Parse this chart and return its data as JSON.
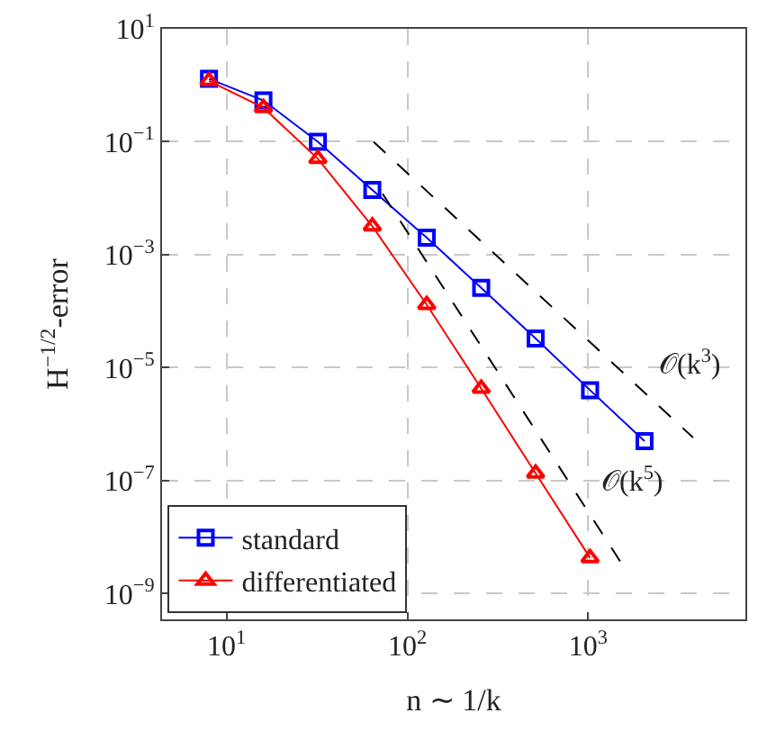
{
  "chart_data": {
    "type": "line",
    "xlabel": "n ∼ 1/k",
    "ylabel": "H$^{−1/2}$-error",
    "log": "xy",
    "grid": true,
    "legend": "bottom left",
    "xlim": [
      4.4,
      7400
    ],
    "ylim": [
      3.5e-10,
      10
    ],
    "xticks": [
      {
        "value": 10,
        "label": "10$^{1}$"
      },
      {
        "value": 100,
        "label": "10$^{2}$"
      },
      {
        "value": 1000,
        "label": "10$^{3}$"
      }
    ],
    "yticks": [
      {
        "value": 10,
        "label": "10$^{1}$"
      },
      {
        "value": 0.1,
        "label": "10$^{−1}$"
      },
      {
        "value": 0.001,
        "label": "10$^{−3}$"
      },
      {
        "value": 1e-05,
        "label": "10$^{−5}$"
      },
      {
        "value": 1e-07,
        "label": "10$^{−7}$"
      },
      {
        "value": 1e-09,
        "label": "10$^{−9}$"
      }
    ],
    "series": [
      {
        "name": "standard",
        "color": "#0000ff",
        "marker": "square",
        "line_style": "solid",
        "x": [
          8,
          16,
          32,
          64,
          128,
          256,
          512,
          1024,
          2048
        ],
        "values": [
          1.3,
          0.54,
          0.1,
          0.014,
          0.002,
          0.00026,
          3.3e-05,
          4e-06,
          5e-07
        ]
      },
      {
        "name": "differentiated",
        "color": "#ff0000",
        "marker": "triangle",
        "line_style": "solid",
        "x": [
          8,
          16,
          32,
          64,
          128,
          256,
          512,
          1024
        ],
        "values": [
          1.2,
          0.4,
          0.05,
          0.0032,
          0.00013,
          4.3e-06,
          1.35e-07,
          4.3e-09
        ]
      },
      {
        "color": "#000000",
        "marker": "none",
        "line_style": "dashed",
        "x": [
          65,
          3800
        ],
        "values": [
          0.1,
          5.8e-07
        ]
      },
      {
        "color": "#000000",
        "marker": "none",
        "line_style": "dashed",
        "x": [
          73,
          1550
        ],
        "values": [
          0.012,
          3.2e-09
        ]
      }
    ],
    "annotations": [
      "𝒪(k$^{3}$)",
      "𝒪(k$^{5}$)"
    ]
  }
}
